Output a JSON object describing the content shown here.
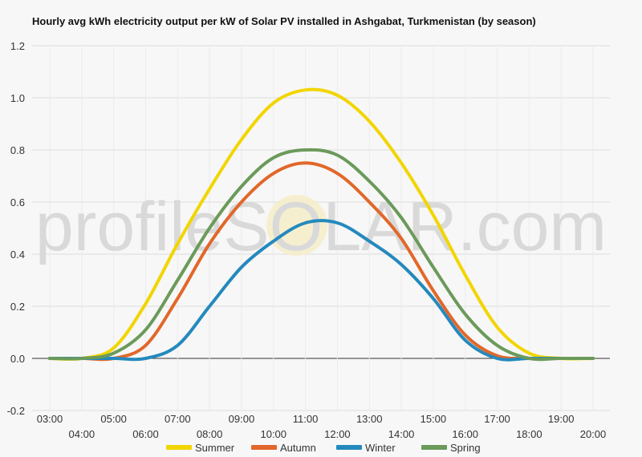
{
  "watermark": "profileSOLAR.com",
  "chart_data": {
    "type": "line",
    "title": "Hourly avg kWh electricity output per kW of Solar PV installed in Ashgabat, Turkmenistan (by season)",
    "xlabel": "",
    "ylabel": "",
    "ylim": [
      -0.2,
      1.2
    ],
    "yticks": [
      "-0.2",
      "0.0",
      "0.2",
      "0.4",
      "0.6",
      "0.8",
      "1.0",
      "1.2"
    ],
    "categories": [
      "03:00",
      "04:00",
      "05:00",
      "06:00",
      "07:00",
      "08:00",
      "09:00",
      "10:00",
      "11:00",
      "12:00",
      "13:00",
      "14:00",
      "15:00",
      "16:00",
      "17:00",
      "18:00",
      "19:00",
      "20:00"
    ],
    "grid": true,
    "legend": "bottom",
    "series": [
      {
        "name": "Summer",
        "color": "#f2d500",
        "values": [
          0.0,
          0.0,
          0.04,
          0.21,
          0.44,
          0.65,
          0.84,
          0.98,
          1.03,
          1.01,
          0.91,
          0.75,
          0.55,
          0.32,
          0.12,
          0.02,
          0.0,
          0.0
        ]
      },
      {
        "name": "Autumn",
        "color": "#e2672a",
        "values": [
          0.0,
          0.0,
          0.0,
          0.05,
          0.23,
          0.44,
          0.6,
          0.71,
          0.75,
          0.71,
          0.6,
          0.46,
          0.26,
          0.09,
          0.01,
          0.0,
          0.0,
          0.0
        ]
      },
      {
        "name": "Winter",
        "color": "#2489bd",
        "values": [
          0.0,
          0.0,
          0.0,
          0.0,
          0.05,
          0.2,
          0.35,
          0.45,
          0.52,
          0.52,
          0.45,
          0.36,
          0.23,
          0.07,
          0.0,
          0.0,
          0.0,
          0.0
        ]
      },
      {
        "name": "Spring",
        "color": "#6b9a5a",
        "values": [
          0.0,
          0.0,
          0.02,
          0.11,
          0.3,
          0.5,
          0.66,
          0.77,
          0.8,
          0.78,
          0.68,
          0.54,
          0.35,
          0.17,
          0.05,
          0.0,
          0.0,
          0.0
        ]
      }
    ]
  }
}
